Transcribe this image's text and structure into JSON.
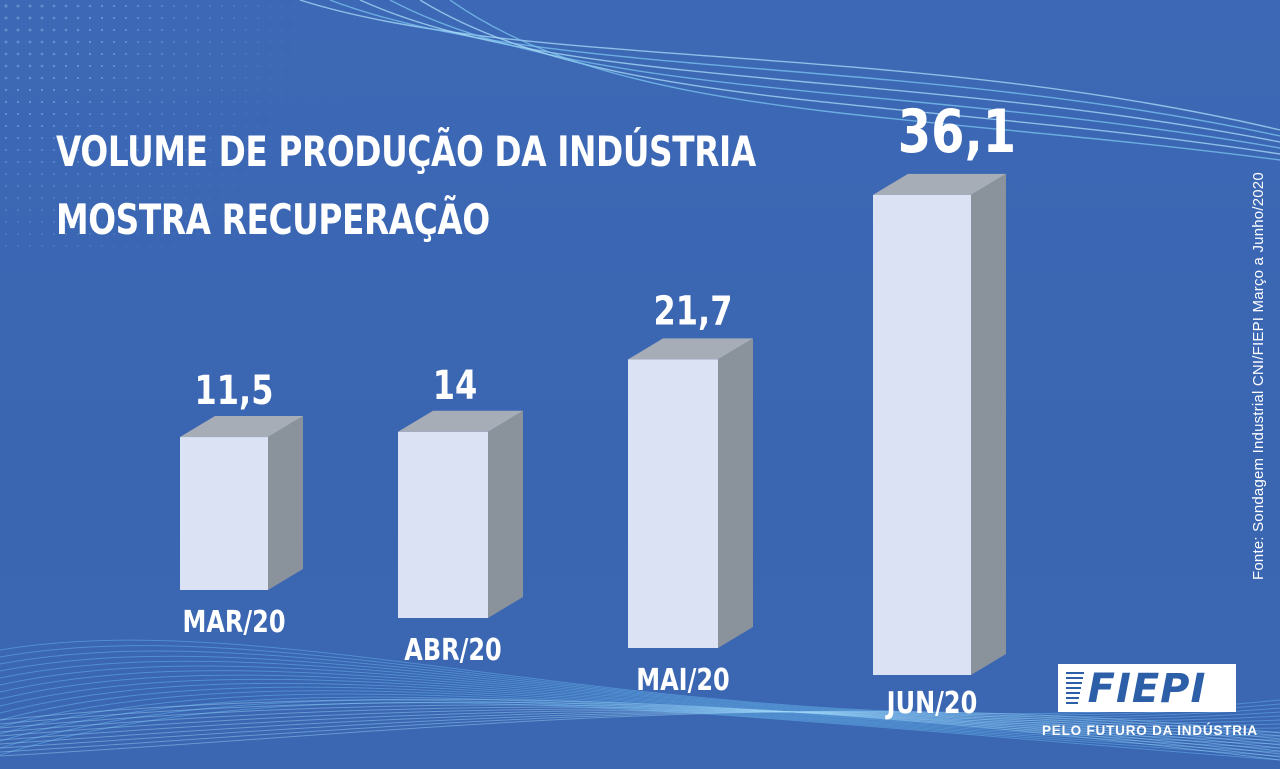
{
  "title": {
    "line1": "VOLUME DE PRODUÇÃO DA INDÚSTRIA",
    "line2": "MOSTRA RECUPERAÇÃO"
  },
  "source": "Fonte: Sondagem Industrial CNI/FIEPI Março a Junho/2020",
  "logo": {
    "text": "FIEPI",
    "tagline": "PELO FUTURO DA INDÚSTRIA"
  },
  "colors": {
    "background": "#3a67b3",
    "bar_front": "#dbe2f3",
    "bar_side": "#8a929c",
    "bar_top": "#a7adb6",
    "text": "#ffffff"
  },
  "chart_data": {
    "type": "bar",
    "style": "3d",
    "title": "VOLUME DE PRODUÇÃO DA INDÚSTRIA MOSTRA RECUPERAÇÃO",
    "categories": [
      "MAR/20",
      "ABR/20",
      "MAI/20",
      "JUN/20"
    ],
    "values": [
      11.5,
      14,
      21.7,
      36.1
    ],
    "value_labels": [
      "11,5",
      "14",
      "21,7",
      "36,1"
    ],
    "xlabel": "",
    "ylabel": "",
    "grid": false,
    "legend": "none"
  }
}
